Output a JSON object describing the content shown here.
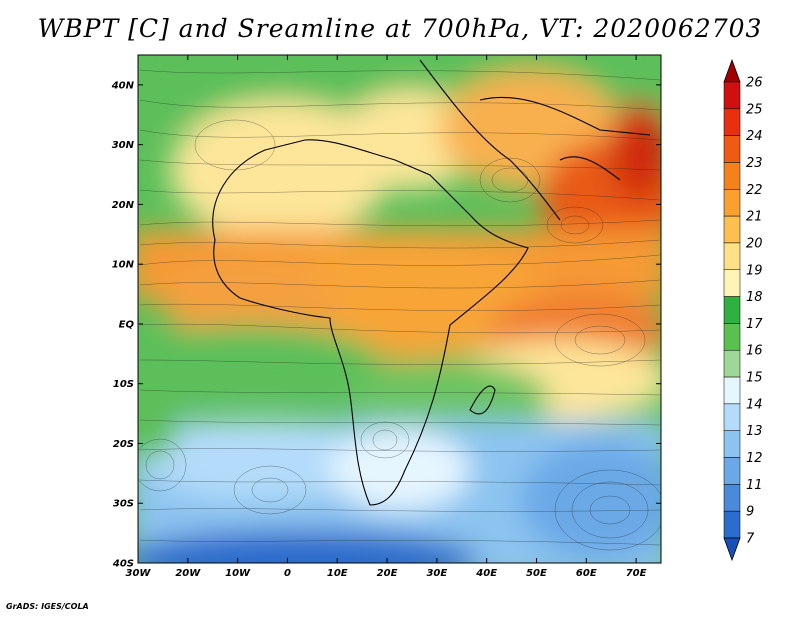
{
  "title": "WBPT [C] and Sreamline at 700hPa, VT: 2020062703",
  "credit": "GrADS: IGES/COLA",
  "map": {
    "lat_labels": [
      "40N",
      "30N",
      "20N",
      "10N",
      "EQ",
      "10S",
      "20S",
      "30S",
      "40S"
    ],
    "lon_labels": [
      "30W",
      "20W",
      "10W",
      "0",
      "10E",
      "20E",
      "30E",
      "40E",
      "50E",
      "60E",
      "70E"
    ],
    "lat_range": [
      -40,
      45
    ],
    "lon_range": [
      -30,
      75
    ]
  },
  "colorbar": {
    "labels": [
      "26",
      "25",
      "24",
      "23",
      "22",
      "21",
      "20",
      "19",
      "18",
      "17",
      "16",
      "15",
      "14",
      "13",
      "12",
      "11",
      "9",
      "7"
    ],
    "colors": [
      "#a00000",
      "#d01010",
      "#e83010",
      "#f05a14",
      "#f4821c",
      "#f8a030",
      "#fbc050",
      "#fde088",
      "#fff4b8",
      "#30b040",
      "#5ac050",
      "#9ed898",
      "#e6f6ff",
      "#b4dcfa",
      "#8cc4f0",
      "#6aa8e6",
      "#4a8ad8",
      "#2c6ccc",
      "#1650b8"
    ]
  }
}
